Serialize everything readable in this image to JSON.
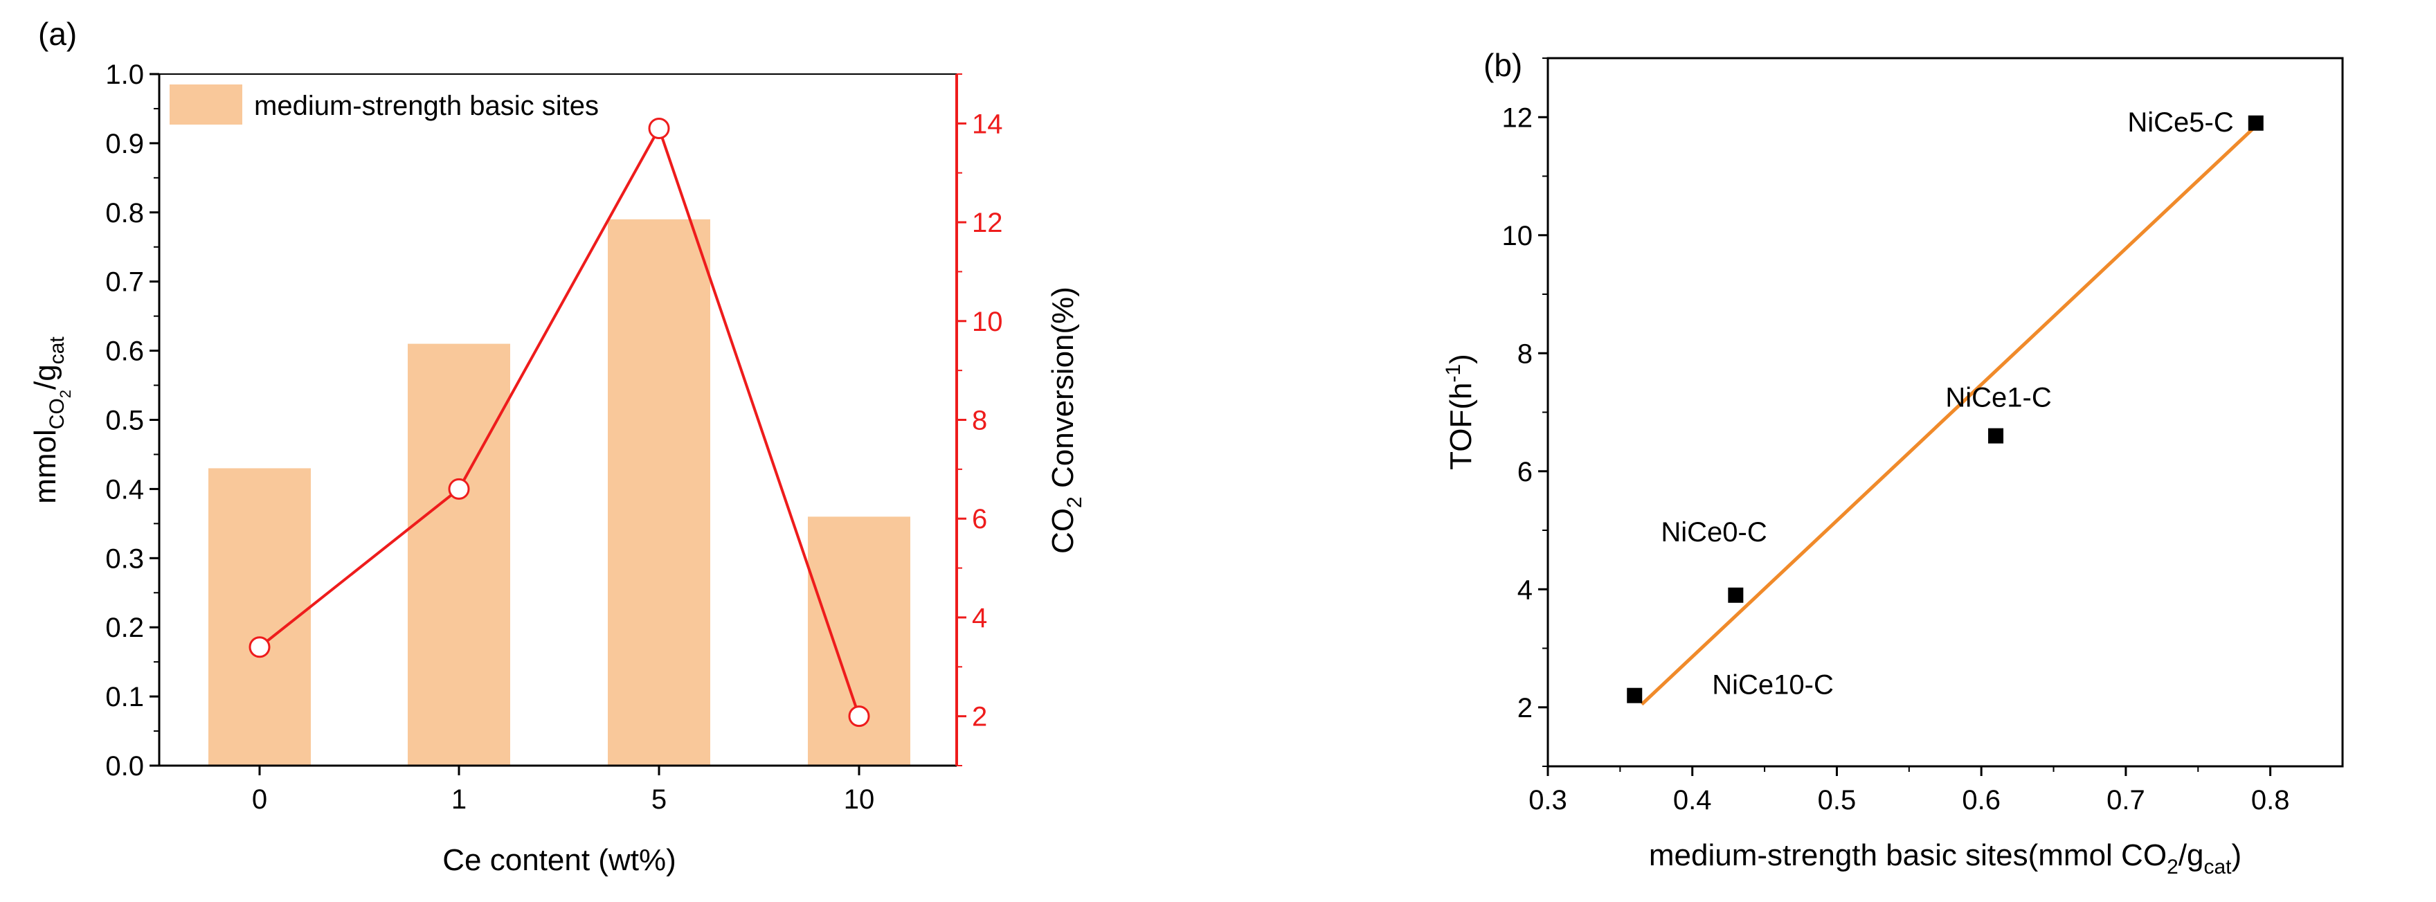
{
  "chart_data": [
    {
      "panel": "(a)",
      "type": "bar",
      "categories": [
        "0",
        "1",
        "5",
        "10"
      ],
      "bar_series": {
        "name": "medium-strength basic sites",
        "values": [
          0.43,
          0.61,
          0.79,
          0.36
        ],
        "color": "#f9c89a"
      },
      "line_series": {
        "name": "CO2 Conversion",
        "values": [
          3.4,
          6.6,
          13.9,
          2.0
        ],
        "color": "#ee1c1c"
      },
      "xlabel": "Ce content (wt%)",
      "ylabel": {
        "main": "mmol",
        "sub1": "CO",
        "subsub": "2",
        "mid": "/g",
        "sub2": "cat"
      },
      "ylim": [
        0,
        1.0
      ],
      "yticks": [
        "0.0",
        "0.1",
        "0.2",
        "0.3",
        "0.4",
        "0.5",
        "0.6",
        "0.7",
        "0.8",
        "0.9",
        "1.0"
      ],
      "y2label": {
        "pre": "CO",
        "sub": "2",
        "post": " Conversion(%)"
      },
      "y2lim": [
        1,
        15
      ],
      "y2ticks": [
        "2",
        "4",
        "6",
        "8",
        "10",
        "12",
        "14"
      ],
      "legend": "medium-strength basic sites",
      "legend_position": "top-left"
    },
    {
      "panel": "(b)",
      "type": "scatter",
      "points": [
        {
          "label": "NiCe0-C",
          "x": 0.43,
          "y": 3.9
        },
        {
          "label": "NiCe1-C",
          "x": 0.61,
          "y": 6.6
        },
        {
          "label": "NiCe5-C",
          "x": 0.79,
          "y": 11.9
        },
        {
          "label": "NiCe10-C",
          "x": 0.36,
          "y": 2.2
        }
      ],
      "fit_line": {
        "x": [
          0.365,
          0.79
        ],
        "y": [
          2.05,
          11.85
        ],
        "color": "#f08a2a"
      },
      "xlabel": {
        "pre": "medium-strength basic sites(mmol CO",
        "sub": "2",
        "mid": "/g",
        "sub2": "cat",
        "post": ")"
      },
      "ylabel": {
        "pre": "TOF(h",
        "sup": "-1",
        "post": ")"
      },
      "xlim": [
        0.3,
        0.85
      ],
      "xticks": [
        "0.3",
        "0.4",
        "0.5",
        "0.6",
        "0.7",
        "0.8"
      ],
      "ylim": [
        1,
        13
      ],
      "yticks": [
        "2",
        "4",
        "6",
        "8",
        "10",
        "12"
      ]
    }
  ]
}
